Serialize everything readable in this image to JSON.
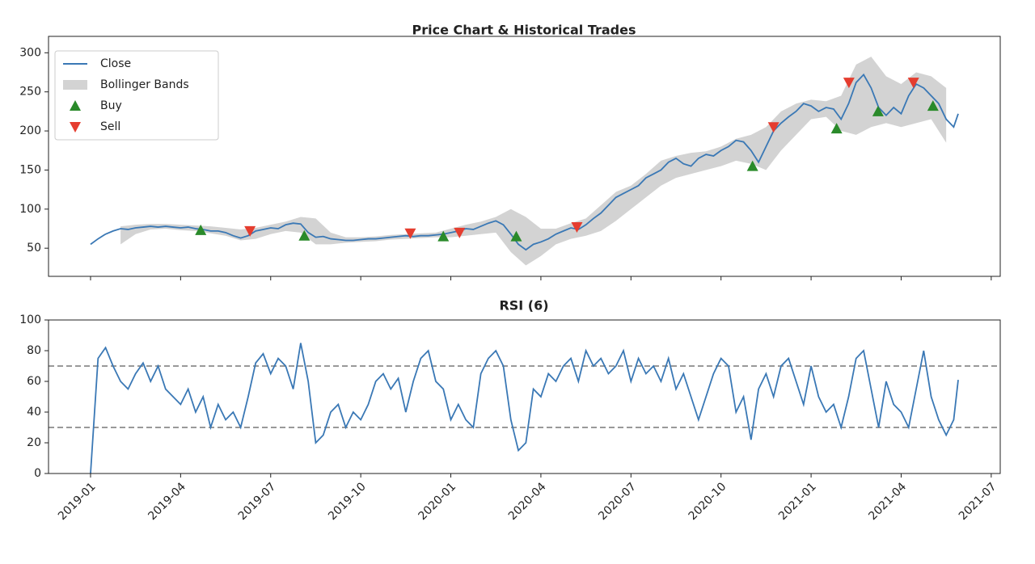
{
  "chart_data": [
    {
      "type": "line",
      "title": "Price Chart & Historical Trades",
      "xlim": [
        -1.4,
        30.3
      ],
      "ylim": [
        14,
        321
      ],
      "yticks": [
        50,
        100,
        150,
        200,
        250,
        300
      ],
      "legend": "upper left",
      "x": [
        0,
        0.25,
        0.5,
        0.75,
        1,
        1.25,
        1.5,
        1.75,
        2,
        2.25,
        2.5,
        2.75,
        3,
        3.25,
        3.5,
        3.75,
        4,
        4.25,
        4.5,
        4.75,
        5,
        5.25,
        5.5,
        5.75,
        6,
        6.25,
        6.5,
        6.75,
        7,
        7.25,
        7.5,
        7.75,
        8,
        8.25,
        8.5,
        8.75,
        9,
        9.25,
        9.5,
        9.75,
        10,
        10.25,
        10.5,
        10.75,
        11,
        11.25,
        11.5,
        11.75,
        12,
        12.25,
        12.5,
        12.75,
        13,
        13.25,
        13.5,
        13.75,
        14,
        14.25,
        14.5,
        14.75,
        15,
        15.25,
        15.5,
        15.75,
        16,
        16.25,
        16.5,
        16.75,
        17,
        17.25,
        17.5,
        17.75,
        18,
        18.25,
        18.5,
        18.75,
        19,
        19.25,
        19.5,
        19.75,
        20,
        20.25,
        20.5,
        20.75,
        21,
        21.25,
        21.5,
        21.75,
        22,
        22.25,
        22.5,
        22.75,
        23,
        23.25,
        23.5,
        23.75,
        24,
        24.25,
        24.5,
        24.75,
        25,
        25.25,
        25.5,
        25.75,
        26,
        26.25,
        26.5,
        26.75,
        27,
        27.25,
        27.5,
        27.75,
        28,
        28.25,
        28.5,
        28.75,
        28.9
      ],
      "series": [
        {
          "name": "Close",
          "color": "#3a78b5",
          "values": [
            55,
            62,
            68,
            72,
            75,
            74,
            76,
            77,
            78,
            77,
            78,
            77,
            76,
            77,
            75,
            74,
            72,
            72,
            70,
            66,
            63,
            66,
            72,
            74,
            76,
            75,
            80,
            82,
            81,
            70,
            64,
            65,
            62,
            61,
            60,
            60,
            61,
            62,
            62,
            63,
            64,
            65,
            66,
            65,
            66,
            66,
            67,
            68,
            70,
            72,
            75,
            74,
            78,
            82,
            85,
            80,
            68,
            55,
            48,
            55,
            58,
            62,
            68,
            72,
            76,
            74,
            80,
            88,
            95,
            105,
            115,
            120,
            125,
            130,
            140,
            145,
            150,
            160,
            165,
            158,
            155,
            165,
            170,
            168,
            175,
            180,
            188,
            186,
            175,
            160,
            180,
            200,
            210,
            218,
            225,
            235,
            232,
            225,
            230,
            228,
            215,
            235,
            262,
            272,
            255,
            230,
            220,
            230,
            222,
            245,
            260,
            255,
            245,
            235,
            215,
            205,
            222
          ]
        }
      ],
      "bands": {
        "name": "Bollinger Bands",
        "color": "#d3d3d3",
        "x": [
          1,
          1.5,
          2,
          2.5,
          3,
          3.5,
          4,
          4.5,
          5,
          5.5,
          6,
          6.5,
          7,
          7.5,
          8,
          8.5,
          9,
          9.5,
          10,
          10.5,
          11,
          11.5,
          12,
          12.5,
          13,
          13.5,
          14,
          14.5,
          15,
          15.5,
          16,
          16.5,
          17,
          17.5,
          18,
          18.5,
          19,
          19.5,
          20,
          20.5,
          21,
          21.5,
          22,
          22.5,
          23,
          23.5,
          24,
          24.5,
          25,
          25.5,
          26,
          26.5,
          27,
          27.5,
          28,
          28.5
        ],
        "lower": [
          55,
          68,
          74,
          75,
          73,
          72,
          69,
          66,
          60,
          62,
          68,
          72,
          70,
          55,
          55,
          57,
          58,
          59,
          61,
          62,
          63,
          64,
          64,
          66,
          68,
          70,
          45,
          28,
          40,
          55,
          62,
          66,
          72,
          85,
          100,
          115,
          130,
          140,
          145,
          150,
          155,
          162,
          158,
          150,
          175,
          195,
          215,
          218,
          200,
          195,
          205,
          210,
          205,
          210,
          215,
          185
        ],
        "upper": [
          78,
          80,
          81,
          81,
          80,
          79,
          78,
          76,
          74,
          76,
          80,
          84,
          90,
          88,
          70,
          64,
          64,
          65,
          67,
          68,
          69,
          70,
          75,
          80,
          84,
          90,
          100,
          90,
          75,
          75,
          82,
          88,
          105,
          122,
          130,
          145,
          162,
          168,
          172,
          174,
          180,
          190,
          195,
          205,
          225,
          235,
          240,
          238,
          245,
          285,
          295,
          270,
          260,
          275,
          270,
          255
        ]
      },
      "markers": [
        {
          "name": "Buy",
          "color": "#2a8a2a",
          "marker": "^",
          "x": [
            3.67,
            7.12,
            11.75,
            14.18,
            22.05,
            24.85,
            26.23,
            28.06
          ],
          "values": [
            73,
            66,
            65,
            65,
            155,
            203,
            225,
            232
          ]
        },
        {
          "name": "Sell",
          "color": "#e53d2f",
          "marker": "v",
          "x": [
            5.31,
            10.65,
            12.29,
            16.2,
            22.75,
            25.26,
            27.41
          ],
          "values": [
            72,
            69,
            70,
            77,
            205,
            262,
            262
          ]
        }
      ]
    },
    {
      "type": "line",
      "title": "RSI (6)",
      "xlim": [
        -1.4,
        30.3
      ],
      "ylim": [
        0,
        100
      ],
      "yticks": [
        0,
        20,
        40,
        60,
        80,
        100
      ],
      "xticks": [
        {
          "value": 0,
          "label": "2019-01"
        },
        {
          "value": 3,
          "label": "2019-04"
        },
        {
          "value": 6,
          "label": "2019-07"
        },
        {
          "value": 9,
          "label": "2019-10"
        },
        {
          "value": 12,
          "label": "2020-01"
        },
        {
          "value": 15,
          "label": "2020-04"
        },
        {
          "value": 18,
          "label": "2020-07"
        },
        {
          "value": 21,
          "label": "2020-10"
        },
        {
          "value": 24,
          "label": "2021-01"
        },
        {
          "value": 27,
          "label": "2021-04"
        },
        {
          "value": 30,
          "label": "2021-07"
        }
      ],
      "hlines": [
        70,
        30
      ],
      "hline_color": "#999999",
      "x": [
        0,
        0.25,
        0.5,
        0.75,
        1,
        1.25,
        1.5,
        1.75,
        2,
        2.25,
        2.5,
        2.75,
        3,
        3.25,
        3.5,
        3.75,
        4,
        4.25,
        4.5,
        4.75,
        5,
        5.25,
        5.5,
        5.75,
        6,
        6.25,
        6.5,
        6.75,
        7,
        7.25,
        7.5,
        7.75,
        8,
        8.25,
        8.5,
        8.75,
        9,
        9.25,
        9.5,
        9.75,
        10,
        10.25,
        10.5,
        10.75,
        11,
        11.25,
        11.5,
        11.75,
        12,
        12.25,
        12.5,
        12.75,
        13,
        13.25,
        13.5,
        13.75,
        14,
        14.25,
        14.5,
        14.75,
        15,
        15.25,
        15.5,
        15.75,
        16,
        16.25,
        16.5,
        16.75,
        17,
        17.25,
        17.5,
        17.75,
        18,
        18.25,
        18.5,
        18.75,
        19,
        19.25,
        19.5,
        19.75,
        20,
        20.25,
        20.5,
        20.75,
        21,
        21.25,
        21.5,
        21.75,
        22,
        22.25,
        22.5,
        22.75,
        23,
        23.25,
        23.5,
        23.75,
        24,
        24.25,
        24.5,
        24.75,
        25,
        25.25,
        25.5,
        25.75,
        26,
        26.25,
        26.5,
        26.75,
        27,
        27.25,
        27.5,
        27.75,
        28,
        28.25,
        28.5,
        28.75,
        28.9
      ],
      "color": "#3a78b5",
      "values": [
        0,
        75,
        82,
        70,
        60,
        55,
        65,
        72,
        60,
        70,
        55,
        50,
        45,
        55,
        40,
        50,
        30,
        45,
        35,
        40,
        30,
        50,
        72,
        78,
        65,
        75,
        70,
        55,
        85,
        60,
        20,
        25,
        40,
        45,
        30,
        40,
        35,
        45,
        60,
        65,
        55,
        62,
        40,
        60,
        75,
        80,
        60,
        55,
        35,
        45,
        35,
        30,
        65,
        75,
        80,
        70,
        35,
        15,
        20,
        55,
        50,
        65,
        60,
        70,
        75,
        60,
        80,
        70,
        75,
        65,
        70,
        80,
        60,
        75,
        65,
        70,
        60,
        75,
        55,
        65,
        50,
        35,
        50,
        65,
        75,
        70,
        40,
        50,
        22,
        55,
        65,
        50,
        70,
        75,
        60,
        45,
        70,
        50,
        40,
        45,
        30,
        50,
        75,
        80,
        55,
        30,
        60,
        45,
        40,
        30,
        55,
        80,
        50,
        35,
        25,
        35,
        61
      ]
    }
  ]
}
